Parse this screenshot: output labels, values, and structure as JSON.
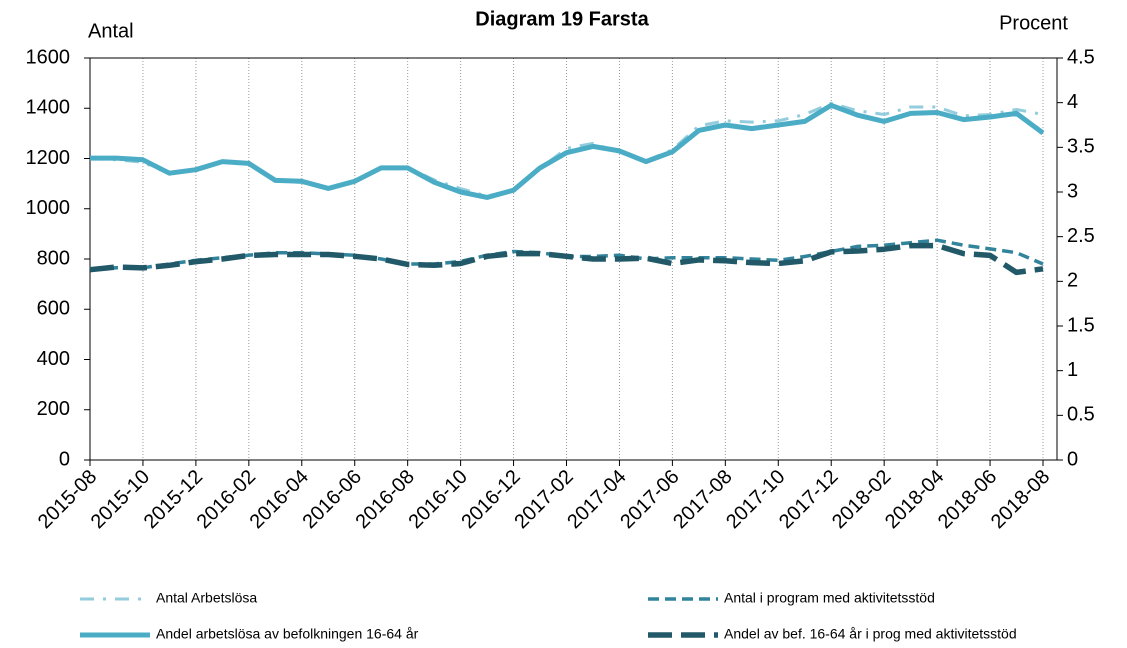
{
  "chart_data": {
    "type": "line",
    "title": "Diagram 19 Farsta",
    "y_label": "Antal",
    "y2_label": "Procent",
    "categories": [
      "2015-08",
      null,
      "2015-10",
      null,
      "2015-12",
      null,
      "2016-02",
      null,
      "2016-04",
      null,
      "2016-06",
      null,
      "2016-08",
      null,
      "2016-10",
      null,
      "2016-12",
      null,
      "2017-02",
      null,
      "2017-04",
      null,
      "2017-06",
      null,
      "2017-08",
      null,
      "2017-10",
      null,
      "2017-12",
      null,
      "2018-02",
      null,
      "2018-04",
      null,
      "2018-06",
      null,
      "2018-08"
    ],
    "ylim": [
      0,
      1600
    ],
    "yticks": [
      0,
      200,
      400,
      600,
      800,
      1000,
      1200,
      1400,
      1600
    ],
    "y2lim": [
      0,
      4.5
    ],
    "y2ticks": [
      0,
      0.5,
      1,
      1.5,
      2,
      2.5,
      3,
      3.5,
      4,
      4.5
    ],
    "grid": true,
    "series": [
      {
        "name": "Antal Arbetslösa",
        "color": "#93cddd",
        "axis": "y",
        "values": [
          1200,
          1195,
          1185,
          1140,
          1155,
          1185,
          1180,
          1110,
          1105,
          1080,
          1105,
          1165,
          1165,
          1115,
          1080,
          1050,
          1075,
          1160,
          1240,
          1260,
          1225,
          1190,
          1235,
          1330,
          1350,
          1345,
          1350,
          1375,
          1420,
          1390,
          1375,
          1405,
          1405,
          1370,
          1375,
          1395,
          1375
        ]
      },
      {
        "name": "Antal i program med aktivitetsstöd",
        "color": "#31849b",
        "axis": "y",
        "values": [
          760,
          765,
          765,
          780,
          795,
          805,
          815,
          825,
          825,
          820,
          815,
          800,
          780,
          780,
          790,
          815,
          830,
          825,
          810,
          810,
          815,
          800,
          805,
          805,
          805,
          800,
          795,
          810,
          830,
          850,
          855,
          865,
          875,
          855,
          840,
          825,
          780
        ]
      },
      {
        "name": "Andel arbetslösa av befolkningen 16-64 år",
        "color": "#4bacc6",
        "axis": "y2",
        "values": [
          3.38,
          3.38,
          3.36,
          3.21,
          3.25,
          3.34,
          3.32,
          3.13,
          3.12,
          3.04,
          3.12,
          3.27,
          3.27,
          3.11,
          3.0,
          2.94,
          3.02,
          3.27,
          3.44,
          3.51,
          3.46,
          3.34,
          3.45,
          3.69,
          3.75,
          3.71,
          3.75,
          3.79,
          3.97,
          3.86,
          3.79,
          3.88,
          3.89,
          3.81,
          3.84,
          3.88,
          3.66
        ]
      },
      {
        "name": "Andel av bef. 16-64 år i prog med aktivitetsstöd",
        "color": "#215968",
        "axis": "y2",
        "values": [
          2.13,
          2.16,
          2.15,
          2.18,
          2.22,
          2.25,
          2.29,
          2.3,
          2.3,
          2.3,
          2.28,
          2.25,
          2.19,
          2.18,
          2.2,
          2.28,
          2.31,
          2.31,
          2.28,
          2.25,
          2.25,
          2.26,
          2.2,
          2.24,
          2.23,
          2.21,
          2.2,
          2.23,
          2.33,
          2.34,
          2.36,
          2.4,
          2.4,
          2.31,
          2.29,
          2.1,
          2.14
        ]
      }
    ]
  }
}
